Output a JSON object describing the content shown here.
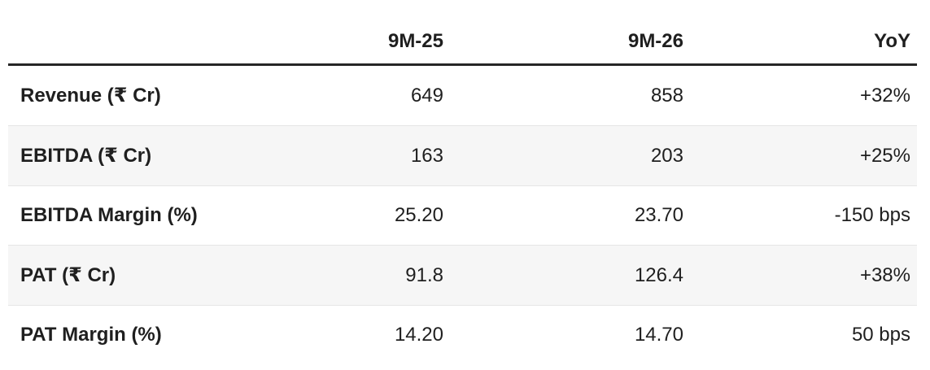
{
  "colors": {
    "header_border": "#262626",
    "stripe_background": "#f6f6f6",
    "row_divider": "#e6e6e6",
    "text": "#1f1f1f"
  },
  "table": {
    "header": {
      "metric": "",
      "col1": "9M-25",
      "col2": "9M-26",
      "col3": "YoY"
    },
    "rows": [
      {
        "label": "Revenue (₹ Cr)",
        "v1": "649",
        "v2": "858",
        "v3": "+32%"
      },
      {
        "label": "EBITDA (₹ Cr)",
        "v1": "163",
        "v2": "203",
        "v3": "+25%"
      },
      {
        "label": "EBITDA Margin (%)",
        "v1": "25.20",
        "v2": "23.70",
        "v3": "-150 bps"
      },
      {
        "label": "PAT (₹ Cr)",
        "v1": "91.8",
        "v2": "126.4",
        "v3": "+38%"
      },
      {
        "label": "PAT Margin (%)",
        "v1": "14.20",
        "v2": "14.70",
        "v3": "50 bps"
      }
    ]
  },
  "chart_data": {
    "type": "table",
    "title": "",
    "columns": [
      "",
      "9M-25",
      "9M-26",
      "YoY"
    ],
    "rows": [
      [
        "Revenue (₹ Cr)",
        "649",
        "858",
        "+32%"
      ],
      [
        "EBITDA (₹ Cr)",
        "163",
        "203",
        "+25%"
      ],
      [
        "EBITDA Margin (%)",
        "25.20",
        "23.70",
        "-150 bps"
      ],
      [
        "PAT (₹ Cr)",
        "91.8",
        "126.4",
        "+38%"
      ],
      [
        "PAT Margin (%)",
        "14.20",
        "14.70",
        "50 bps"
      ]
    ],
    "layout_hints": {
      "numeric_columns_right_aligned": true,
      "zebra_striped_rows": [
        2,
        4
      ],
      "thick_rule_under_header": true
    }
  }
}
